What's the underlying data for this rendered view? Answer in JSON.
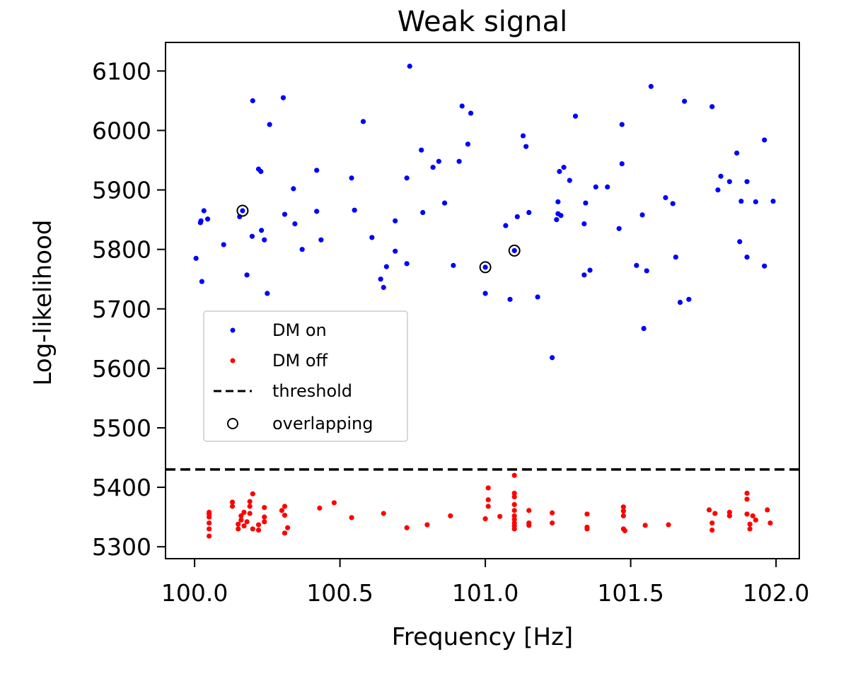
{
  "chart_data": {
    "type": "scatter",
    "title": "Weak signal",
    "xlabel": "Frequency [Hz]",
    "ylabel": "Log-likelihood",
    "xlim": [
      99.9,
      102.08
    ],
    "ylim": [
      5280,
      6148
    ],
    "xticks": [
      100.0,
      100.5,
      101.0,
      101.5,
      102.0
    ],
    "xtick_labels": [
      "100.0",
      "100.5",
      "101.0",
      "101.5",
      "102.0"
    ],
    "yticks": [
      5300,
      5400,
      5500,
      5600,
      5700,
      5800,
      5900,
      6000,
      6100
    ],
    "ytick_labels": [
      "5300",
      "5400",
      "5500",
      "5600",
      "5700",
      "5800",
      "5900",
      "6000",
      "6100"
    ],
    "threshold": 5430,
    "legend_position": "center-left",
    "series": [
      {
        "name": "DM on",
        "color": "#0000ff",
        "points": [
          [
            100.005,
            5785
          ],
          [
            100.02,
            5845
          ],
          [
            100.022,
            5848
          ],
          [
            100.025,
            5746
          ],
          [
            100.032,
            5865
          ],
          [
            100.045,
            5851
          ],
          [
            100.1,
            5808
          ],
          [
            100.155,
            5855
          ],
          [
            100.18,
            5757
          ],
          [
            100.2,
            6050
          ],
          [
            100.198,
            5822
          ],
          [
            100.22,
            5935
          ],
          [
            100.228,
            5931
          ],
          [
            100.23,
            5832
          ],
          [
            100.24,
            5816
          ],
          [
            100.25,
            5726
          ],
          [
            100.258,
            6010
          ],
          [
            100.305,
            6055
          ],
          [
            100.31,
            5859
          ],
          [
            100.34,
            5902
          ],
          [
            100.345,
            5843
          ],
          [
            100.37,
            5800
          ],
          [
            100.42,
            5933
          ],
          [
            100.42,
            5864
          ],
          [
            100.435,
            5816
          ],
          [
            100.54,
            5920
          ],
          [
            100.55,
            5866
          ],
          [
            100.58,
            6015
          ],
          [
            100.61,
            5820
          ],
          [
            100.64,
            5750
          ],
          [
            100.65,
            5736
          ],
          [
            100.66,
            5771
          ],
          [
            100.69,
            5848
          ],
          [
            100.69,
            5797
          ],
          [
            100.73,
            5920
          ],
          [
            100.73,
            5776
          ],
          [
            100.74,
            6108
          ],
          [
            100.78,
            5967
          ],
          [
            100.785,
            5862
          ],
          [
            100.82,
            5938
          ],
          [
            100.84,
            5948
          ],
          [
            100.86,
            5878
          ],
          [
            100.89,
            5773
          ],
          [
            100.91,
            5948
          ],
          [
            100.92,
            6041
          ],
          [
            100.94,
            5977
          ],
          [
            100.95,
            6029
          ],
          [
            101.0,
            5726
          ],
          [
            101.07,
            5840
          ],
          [
            101.085,
            5716
          ],
          [
            101.11,
            5855
          ],
          [
            101.13,
            5991
          ],
          [
            101.14,
            5973
          ],
          [
            101.15,
            5862
          ],
          [
            101.18,
            5720
          ],
          [
            101.23,
            5618
          ],
          [
            101.245,
            5850
          ],
          [
            101.25,
            5880
          ],
          [
            101.25,
            5860
          ],
          [
            101.255,
            5931
          ],
          [
            101.26,
            5857
          ],
          [
            101.27,
            5938
          ],
          [
            101.29,
            5916
          ],
          [
            101.31,
            6024
          ],
          [
            101.34,
            5843
          ],
          [
            101.34,
            5757
          ],
          [
            101.345,
            5878
          ],
          [
            101.36,
            5765
          ],
          [
            101.38,
            5905
          ],
          [
            101.42,
            5905
          ],
          [
            101.46,
            5835
          ],
          [
            101.47,
            6010
          ],
          [
            101.47,
            5944
          ],
          [
            101.52,
            5773
          ],
          [
            101.54,
            5858
          ],
          [
            101.545,
            5667
          ],
          [
            101.555,
            5764
          ],
          [
            101.57,
            6074
          ],
          [
            101.62,
            5887
          ],
          [
            101.645,
            5877
          ],
          [
            101.655,
            5787
          ],
          [
            101.67,
            5711
          ],
          [
            101.685,
            6049
          ],
          [
            101.7,
            5716
          ],
          [
            101.78,
            6040
          ],
          [
            101.8,
            5900
          ],
          [
            101.81,
            5923
          ],
          [
            101.84,
            5914
          ],
          [
            101.865,
            5962
          ],
          [
            101.875,
            5813
          ],
          [
            101.88,
            5881
          ],
          [
            101.9,
            5914
          ],
          [
            101.9,
            5787
          ],
          [
            101.93,
            5880
          ],
          [
            101.96,
            5984
          ],
          [
            101.96,
            5772
          ],
          [
            101.99,
            5881
          ],
          [
            100.165,
            5865
          ],
          [
            101.0,
            5770
          ],
          [
            101.1,
            5798
          ]
        ]
      },
      {
        "name": "DM off",
        "color": "#ff0000",
        "points": [
          [
            100.05,
            5318
          ],
          [
            100.05,
            5330
          ],
          [
            100.05,
            5340
          ],
          [
            100.05,
            5350
          ],
          [
            100.05,
            5355
          ],
          [
            100.05,
            5358
          ],
          [
            100.13,
            5368
          ],
          [
            100.13,
            5375
          ],
          [
            100.15,
            5330
          ],
          [
            100.15,
            5338
          ],
          [
            100.16,
            5345
          ],
          [
            100.16,
            5352
          ],
          [
            100.17,
            5358
          ],
          [
            100.17,
            5335
          ],
          [
            100.18,
            5342
          ],
          [
            100.19,
            5356
          ],
          [
            100.19,
            5368
          ],
          [
            100.19,
            5376
          ],
          [
            100.2,
            5389
          ],
          [
            100.2,
            5330
          ],
          [
            100.22,
            5328
          ],
          [
            100.22,
            5337
          ],
          [
            100.24,
            5342
          ],
          [
            100.24,
            5350
          ],
          [
            100.24,
            5366
          ],
          [
            100.3,
            5361
          ],
          [
            100.31,
            5353
          ],
          [
            100.31,
            5368
          ],
          [
            100.31,
            5323
          ],
          [
            100.32,
            5332
          ],
          [
            100.43,
            5365
          ],
          [
            100.48,
            5374
          ],
          [
            100.54,
            5349
          ],
          [
            100.65,
            5356
          ],
          [
            100.73,
            5332
          ],
          [
            100.8,
            5337
          ],
          [
            100.88,
            5352
          ],
          [
            101.0,
            5347
          ],
          [
            101.01,
            5368
          ],
          [
            101.01,
            5379
          ],
          [
            101.01,
            5399
          ],
          [
            101.05,
            5351
          ],
          [
            101.1,
            5420
          ],
          [
            101.1,
            5390
          ],
          [
            101.1,
            5384
          ],
          [
            101.1,
            5371
          ],
          [
            101.1,
            5361
          ],
          [
            101.1,
            5352
          ],
          [
            101.1,
            5346
          ],
          [
            101.1,
            5340
          ],
          [
            101.1,
            5335
          ],
          [
            101.1,
            5330
          ],
          [
            101.15,
            5361
          ],
          [
            101.15,
            5340
          ],
          [
            101.15,
            5336
          ],
          [
            101.23,
            5357
          ],
          [
            101.23,
            5340
          ],
          [
            101.35,
            5355
          ],
          [
            101.35,
            5333
          ],
          [
            101.35,
            5330
          ],
          [
            101.475,
            5367
          ],
          [
            101.475,
            5360
          ],
          [
            101.475,
            5352
          ],
          [
            101.475,
            5330
          ],
          [
            101.48,
            5327
          ],
          [
            101.55,
            5336
          ],
          [
            101.63,
            5337
          ],
          [
            101.77,
            5362
          ],
          [
            101.78,
            5340
          ],
          [
            101.78,
            5328
          ],
          [
            101.79,
            5356
          ],
          [
            101.84,
            5352
          ],
          [
            101.84,
            5358
          ],
          [
            101.9,
            5390
          ],
          [
            101.9,
            5380
          ],
          [
            101.9,
            5355
          ],
          [
            101.91,
            5330
          ],
          [
            101.91,
            5338
          ],
          [
            101.92,
            5352
          ],
          [
            101.93,
            5345
          ],
          [
            101.97,
            5362
          ],
          [
            101.98,
            5340
          ]
        ]
      },
      {
        "name": "overlapping",
        "color": "#000000",
        "points": [
          [
            100.165,
            5865
          ],
          [
            101.0,
            5770
          ],
          [
            101.1,
            5798
          ]
        ]
      }
    ],
    "legend": [
      "DM on",
      "DM off",
      "threshold",
      "overlapping"
    ]
  }
}
